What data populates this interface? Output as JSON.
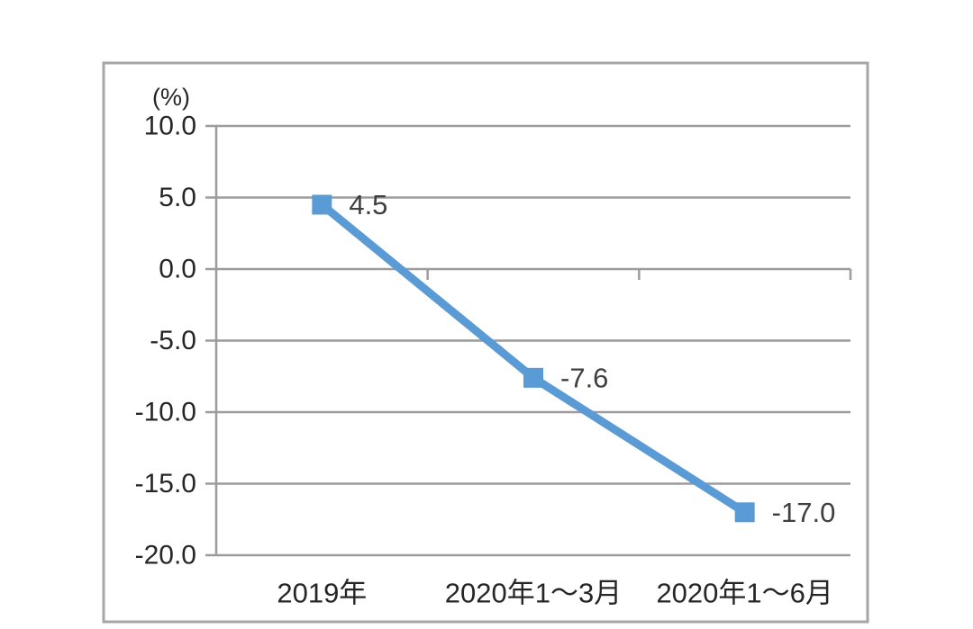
{
  "chart_data": {
    "type": "line",
    "title": "",
    "unit_label": "(%)",
    "categories": [
      "2019年",
      "2020年1～3月",
      "2020年1～6月"
    ],
    "values": [
      4.5,
      -7.6,
      -17.0
    ],
    "data_labels": [
      "4.5",
      "-7.6",
      "-17.0"
    ],
    "y_tick_labels": [
      "10.0",
      "5.0",
      "0.0",
      "-5.0",
      "-10.0",
      "-15.0",
      "-20.0"
    ],
    "y_ticks": [
      10.0,
      5.0,
      0.0,
      -5.0,
      -10.0,
      -15.0,
      -20.0
    ],
    "ylim": [
      -20.0,
      10.0
    ],
    "xlabel": "",
    "ylabel": "(%)",
    "grid": true,
    "legend_position": "none",
    "marker_shape": "square",
    "colors": {
      "line": "#5B9BD5",
      "marker": "#5B9BD5",
      "gridline": "#9C9C9C",
      "axis_line": "#9C9C9C",
      "frame_border": "#A6A6A6",
      "tick_text": "#262626",
      "data_label_text": "#3F3F3F",
      "background": "#FFFFFF"
    }
  }
}
